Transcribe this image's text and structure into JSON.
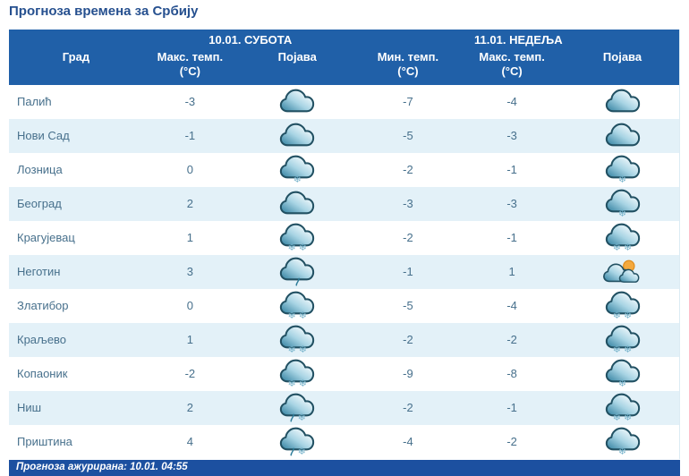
{
  "page": {
    "title": "Прогноза времена за Србију"
  },
  "table": {
    "day1_header": "10.01. СУБОТА",
    "day2_header": "11.01. НЕДЕЉА",
    "columns": {
      "city": "Град",
      "day1_max": "Макс. темп.\n(°C)",
      "day1_icon": "Појава",
      "day2_min": "Мин. темп.\n(°C)",
      "day2_max": "Макс. темп.\n(°C)",
      "day2_icon": "Појава"
    },
    "rows": [
      {
        "city": "Палић",
        "day1_max": "-3",
        "day1_icon": "cloudy",
        "day2_min": "-7",
        "day2_max": "-4",
        "day2_icon": "cloudy"
      },
      {
        "city": "Нови Сад",
        "day1_max": "-1",
        "day1_icon": "cloudy",
        "day2_min": "-5",
        "day2_max": "-3",
        "day2_icon": "cloudy"
      },
      {
        "city": "Лозница",
        "day1_max": "0",
        "day1_icon": "cloud-snow-1",
        "day2_min": "-2",
        "day2_max": "-1",
        "day2_icon": "cloud-snow-1"
      },
      {
        "city": "Београд",
        "day1_max": "2",
        "day1_icon": "cloudy",
        "day2_min": "-3",
        "day2_max": "-3",
        "day2_icon": "cloud-snow-1"
      },
      {
        "city": "Крагујевац",
        "day1_max": "1",
        "day1_icon": "cloud-snow-2",
        "day2_min": "-2",
        "day2_max": "-1",
        "day2_icon": "cloud-snow-2"
      },
      {
        "city": "Неготин",
        "day1_max": "3",
        "day1_icon": "cloud-light-rain",
        "day2_min": "-1",
        "day2_max": "1",
        "day2_icon": "partly-cloudy"
      },
      {
        "city": "Златибор",
        "day1_max": "0",
        "day1_icon": "cloud-snow-2",
        "day2_min": "-5",
        "day2_max": "-4",
        "day2_icon": "cloud-snow-2"
      },
      {
        "city": "Краљево",
        "day1_max": "1",
        "day1_icon": "cloud-snow-2",
        "day2_min": "-2",
        "day2_max": "-2",
        "day2_icon": "cloud-snow-2"
      },
      {
        "city": "Копаоник",
        "day1_max": "-2",
        "day1_icon": "cloud-snow-2",
        "day2_min": "-9",
        "day2_max": "-8",
        "day2_icon": "cloud-snow-1"
      },
      {
        "city": "Ниш",
        "day1_max": "2",
        "day1_icon": "cloud-rain-snow",
        "day2_min": "-2",
        "day2_max": "-1",
        "day2_icon": "cloud-snow-2"
      },
      {
        "city": "Приштина",
        "day1_max": "4",
        "day1_icon": "cloud-rain-snow",
        "day2_min": "-4",
        "day2_max": "-2",
        "day2_icon": "cloud-snow-1"
      }
    ]
  },
  "footer": {
    "updated": "Прогноза ажурирана:  10.01. 04:55"
  },
  "colors": {
    "header_bg": "#2060A8",
    "footer_bg": "#1C50A0",
    "row_alt_bg": "#E3F1F8",
    "title_color": "#26508F",
    "text_color": "#47708C",
    "cloud_dark": "#2E7E9E",
    "cloud_outline": "#215062",
    "snow_color": "#6FAFC8",
    "sun_color": "#F4A93E"
  }
}
